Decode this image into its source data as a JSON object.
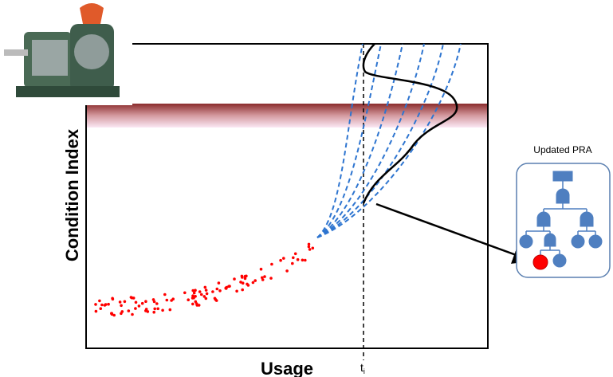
{
  "axes": {
    "y_label": "Condition Index",
    "x_label": "Usage",
    "time_marker": {
      "base": "t",
      "subscript": "i"
    }
  },
  "panel": {
    "title": "Updated PRA"
  }
}
